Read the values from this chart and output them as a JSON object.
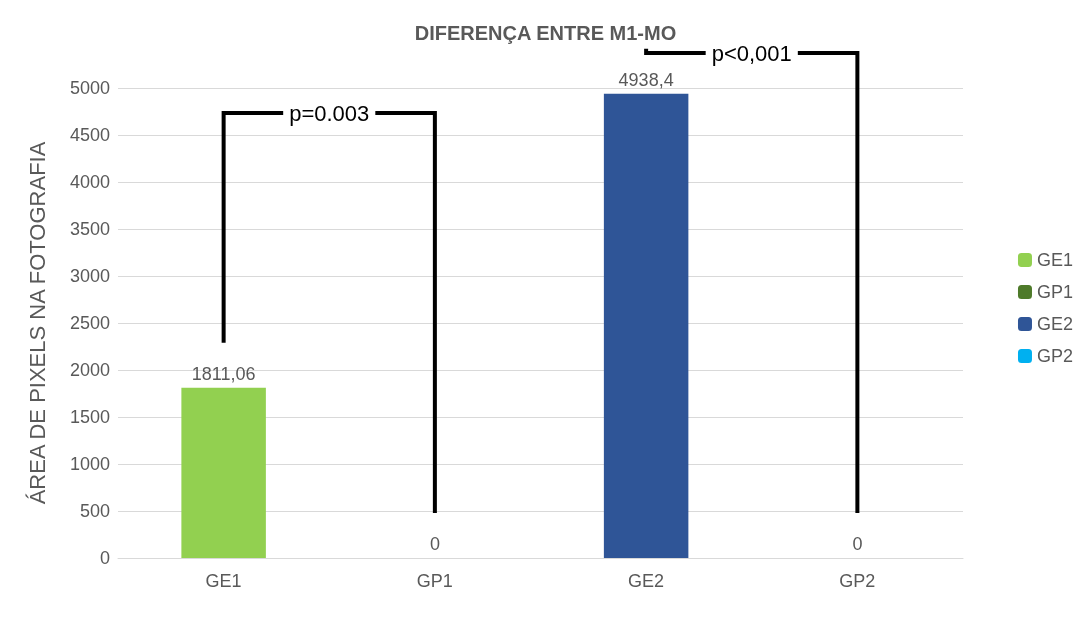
{
  "chart_data": {
    "type": "bar",
    "title": "DIFERENÇA ENTRE M1-MO",
    "ylabel": "ÁREA DE PIXELS NA FOTOGRAFIA",
    "categories": [
      "GE1",
      "GP1",
      "GE2",
      "GP2"
    ],
    "series": [
      {
        "name": "GE1",
        "color": "#92d050",
        "values": [
          1811.06,
          null,
          null,
          null
        ],
        "value_labels": [
          "1811,06",
          null,
          null,
          null
        ]
      },
      {
        "name": "GP1",
        "color": "#4e7a2a",
        "values": [
          null,
          0,
          null,
          null
        ],
        "value_labels": [
          null,
          "0",
          null,
          null
        ]
      },
      {
        "name": "GE2",
        "color": "#2f5597",
        "values": [
          null,
          null,
          4938.4,
          null
        ],
        "value_labels": [
          null,
          null,
          "4938,4",
          null
        ]
      },
      {
        "name": "GP2",
        "color": "#00b0f0",
        "values": [
          null,
          null,
          null,
          0
        ],
        "value_labels": [
          null,
          null,
          null,
          "0"
        ]
      }
    ],
    "stacked": true,
    "ylim": [
      0,
      5000
    ],
    "yticks": [
      0,
      500,
      1000,
      1500,
      2000,
      2500,
      3000,
      3500,
      4000,
      4500,
      5000
    ],
    "grid": "y",
    "legend": "right",
    "annotations": [
      "p=0.003",
      "p<0,001"
    ]
  }
}
